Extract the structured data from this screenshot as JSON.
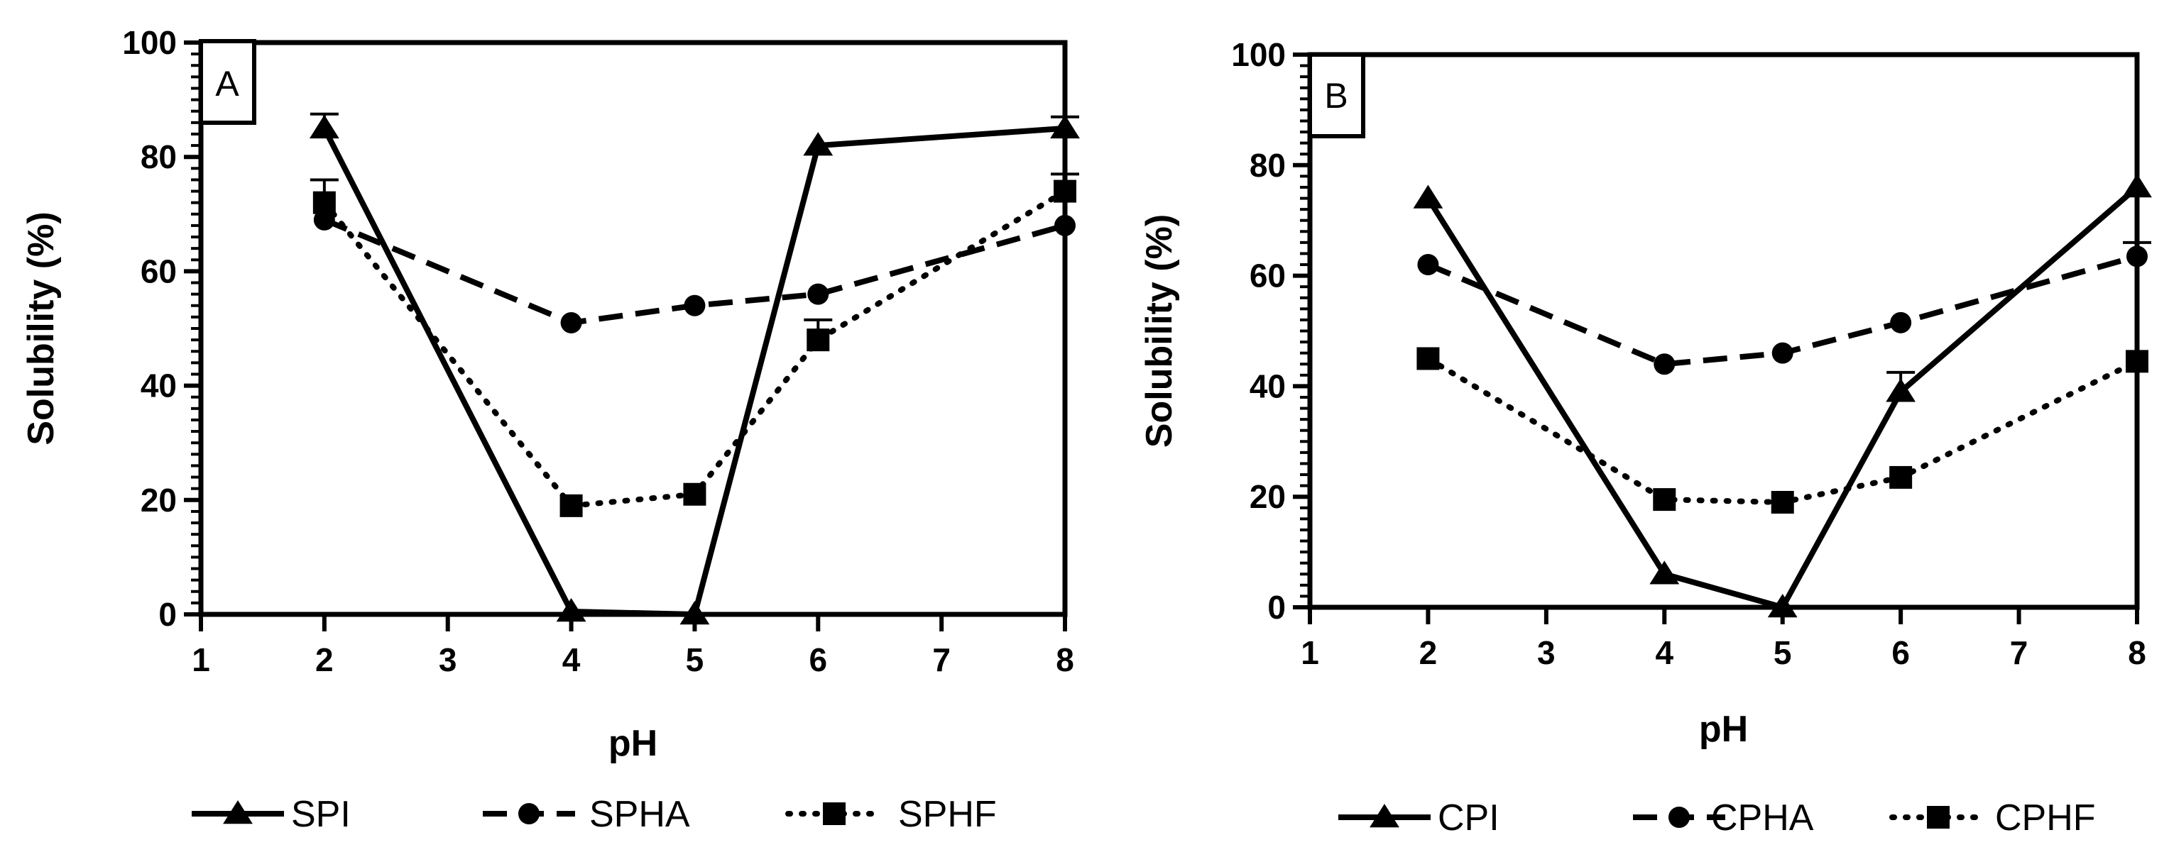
{
  "chart_data": [
    {
      "type": "line",
      "panel_label": "A",
      "xlabel": "pH",
      "ylabel": "Solubility (%)",
      "xlim": [
        1,
        8
      ],
      "ylim": [
        0,
        100
      ],
      "x_ticks": [
        1,
        2,
        3,
        4,
        5,
        6,
        7,
        8
      ],
      "y_ticks": [
        0,
        20,
        40,
        60,
        80,
        100
      ],
      "series": [
        {
          "name": "SPI",
          "marker": "triangle",
          "line": "solid",
          "x": [
            2,
            4,
            5,
            6,
            8
          ],
          "y": [
            85,
            0.5,
            0,
            82,
            85
          ],
          "error": [
            2.5,
            0,
            0,
            0,
            2
          ]
        },
        {
          "name": "SPHA",
          "marker": "circle",
          "line": "dashed",
          "x": [
            2,
            4,
            5,
            6,
            8
          ],
          "y": [
            69,
            51,
            54,
            56,
            68
          ],
          "error": [
            0,
            0,
            0,
            0,
            0
          ]
        },
        {
          "name": "SPHF",
          "marker": "square",
          "line": "dotted",
          "x": [
            2,
            4,
            5,
            6,
            8
          ],
          "y": [
            72,
            19,
            21,
            48,
            74
          ],
          "error": [
            4,
            0,
            0,
            3.5,
            3
          ]
        }
      ]
    },
    {
      "type": "line",
      "panel_label": "B",
      "xlabel": "pH",
      "ylabel": "Solubility (%)",
      "xlim": [
        1,
        8
      ],
      "ylim": [
        0,
        100
      ],
      "x_ticks": [
        1,
        2,
        3,
        4,
        5,
        6,
        7,
        8
      ],
      "y_ticks": [
        0,
        20,
        40,
        60,
        80,
        100
      ],
      "series": [
        {
          "name": "CPI",
          "marker": "triangle",
          "line": "solid",
          "x": [
            2,
            4,
            5,
            6,
            8
          ],
          "y": [
            74,
            6,
            0,
            39,
            76
          ],
          "error": [
            0,
            0,
            0,
            3.5,
            0
          ]
        },
        {
          "name": "CPHA",
          "marker": "circle",
          "line": "dashed",
          "x": [
            2,
            4,
            5,
            6,
            8
          ],
          "y": [
            62,
            44,
            46,
            51.5,
            63.5
          ],
          "error": [
            0,
            0,
            0,
            0,
            2.5
          ]
        },
        {
          "name": "CPHF",
          "marker": "square",
          "line": "dotted",
          "x": [
            2,
            4,
            5,
            6,
            8
          ],
          "y": [
            45,
            19.5,
            19,
            23.5,
            44.5
          ],
          "error": [
            0,
            0,
            0,
            0,
            0
          ]
        }
      ]
    }
  ]
}
